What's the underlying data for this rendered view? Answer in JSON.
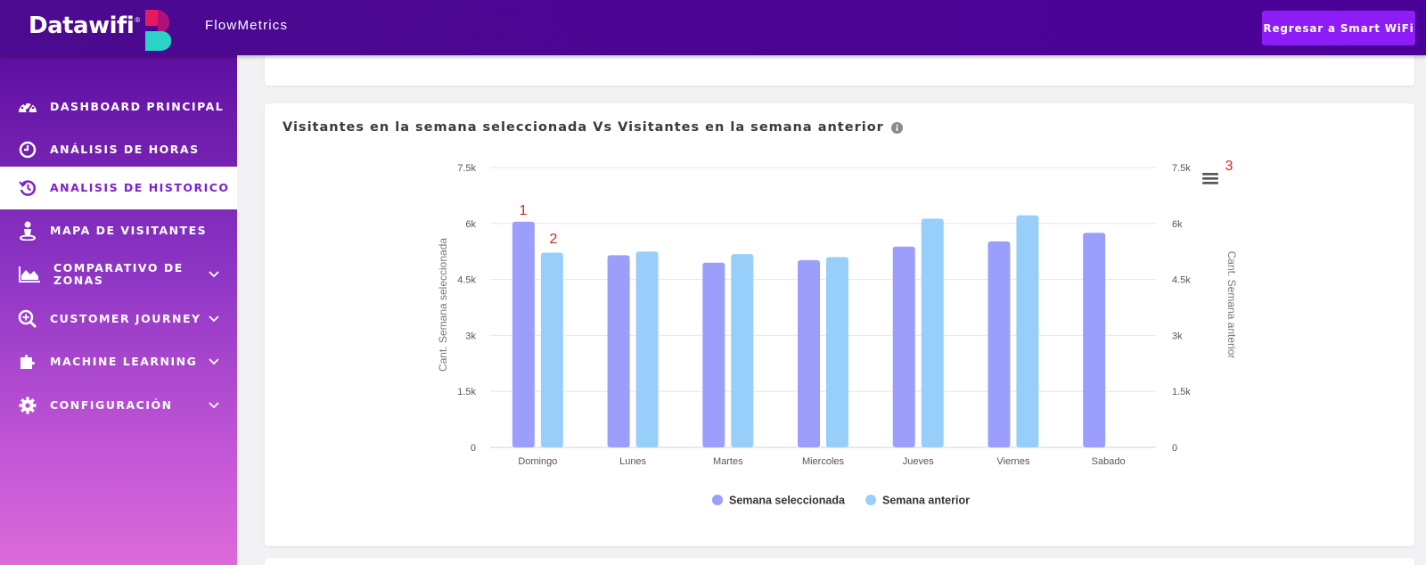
{
  "header": {
    "logo_text": "Datawifi",
    "logo_reg": "®",
    "product_name": "FlowMetrics",
    "back_button_label": "Regresar a Smart WiFi"
  },
  "sidebar": {
    "items": [
      {
        "label": "DASHBOARD PRINCIPAL",
        "icon": "gauge-icon"
      },
      {
        "label": "ANÁLISIS DE HORAS",
        "icon": "clock-icon"
      },
      {
        "label": "ANALISIS DE HISTORICO",
        "icon": "history-icon",
        "active": true
      },
      {
        "label": "MAPA DE VISITANTES",
        "icon": "person-pin-icon"
      },
      {
        "label": "COMPARATIVO DE ZONAS",
        "icon": "area-chart-icon",
        "expandable": true
      },
      {
        "label": "CUSTOMER JOURNEY",
        "icon": "search-plus-icon",
        "expandable": true
      },
      {
        "label": "MACHINE LEARNING",
        "icon": "puzzle-icon",
        "expandable": true
      },
      {
        "label": "CONFIGURACIÓN",
        "icon": "gear-icon",
        "expandable": true
      }
    ]
  },
  "chart_data": {
    "type": "bar",
    "title": "Visitantes en la semana seleccionada Vs Visitantes en la semana anterior",
    "categories": [
      "Domingo",
      "Lunes",
      "Martes",
      "Miercoles",
      "Jueves",
      "Viernes",
      "Sabado"
    ],
    "series": [
      {
        "name": "Semana seleccionada",
        "color": "#9b9ffb",
        "values": [
          6050,
          5150,
          4950,
          5020,
          5380,
          5520,
          5750
        ]
      },
      {
        "name": "Semana anterior",
        "color": "#98cffa",
        "values": [
          5220,
          5250,
          5180,
          5100,
          6130,
          6220,
          null
        ]
      }
    ],
    "ylabel": "Cant. Semana seleccionada",
    "ylabel_right": "Cant. Semana anterior",
    "ylim": [
      0,
      7500
    ],
    "yticks": [
      0,
      1500,
      3000,
      4500,
      6000,
      7500
    ],
    "ytick_labels": [
      "0",
      "1.5k",
      "3k",
      "4.5k",
      "6k",
      "7.5k"
    ],
    "grid": true,
    "legend": "bottom-center",
    "annotations": [
      "1",
      "2",
      "3"
    ]
  }
}
